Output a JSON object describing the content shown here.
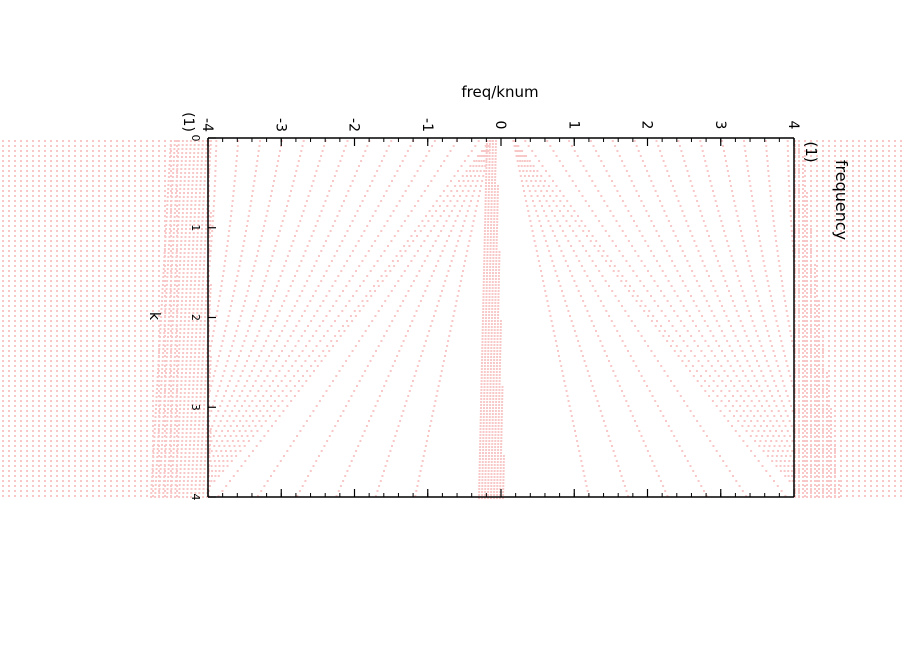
{
  "chart_data": {
    "type": "scatter",
    "title": "",
    "top_axis": {
      "label": "freq/knum",
      "range": [
        -4,
        4
      ],
      "tick_labels": [
        "-4",
        "-3",
        "-2",
        "-1",
        "0",
        "1",
        "2",
        "3",
        "4"
      ]
    },
    "right_axis": {
      "label": "frequency",
      "unit": "(1)"
    },
    "left_axis": {
      "label": "k",
      "unit": "(1)",
      "range": [
        0,
        4
      ],
      "tick_labels": [
        "0",
        "1",
        "2",
        "3",
        "4"
      ]
    },
    "grid": false,
    "legend": "none",
    "rotated_plot": true,
    "marker_color": "#f8c8c8",
    "series_summary": {
      "dispersion_branches_per_side": 18,
      "vertical_band_at_freq_over_knum": 0,
      "dense_bands_near_edges": [
        -4,
        4
      ]
    }
  }
}
